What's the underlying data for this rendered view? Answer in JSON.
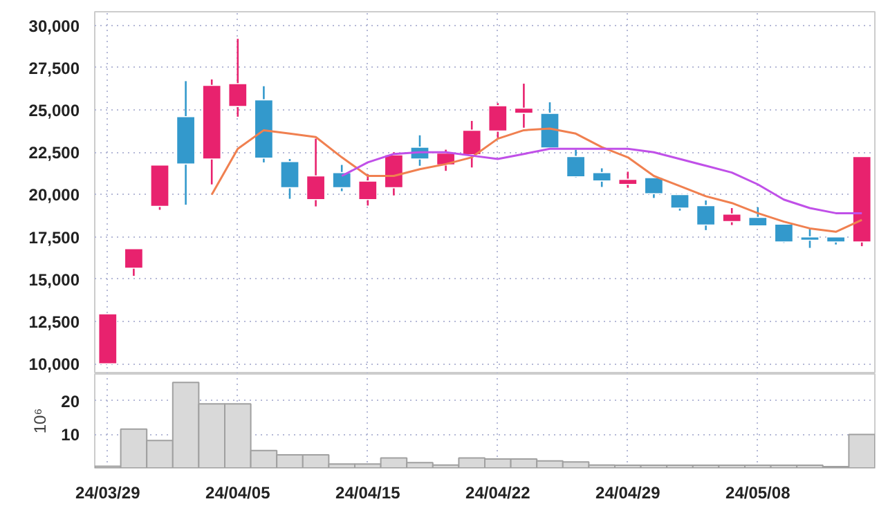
{
  "chart_data": [
    {
      "type": "candlestick",
      "categories": [
        "24/03/29",
        null,
        null,
        null,
        null,
        "24/04/05",
        null,
        null,
        null,
        null,
        "24/04/15",
        null,
        null,
        null,
        null,
        "24/04/22",
        null,
        null,
        null,
        null,
        "24/04/29",
        null,
        null,
        null,
        null,
        "24/05/08",
        null,
        null,
        null,
        null
      ],
      "ohlc": [
        [
          10000,
          12950,
          10000,
          12950
        ],
        [
          15650,
          16800,
          15200,
          16800
        ],
        [
          19300,
          21750,
          19100,
          21750
        ],
        [
          24600,
          26700,
          19400,
          21800
        ],
        [
          22100,
          26800,
          20600,
          26450
        ],
        [
          25200,
          29200,
          24600,
          26550
        ],
        [
          25600,
          26400,
          21900,
          22150
        ],
        [
          21950,
          22100,
          19750,
          20400
        ],
        [
          19700,
          23300,
          19300,
          21100
        ],
        [
          21300,
          21750,
          20200,
          20400
        ],
        [
          19700,
          21200,
          19350,
          20800
        ],
        [
          20400,
          22500,
          19950,
          22350
        ],
        [
          22800,
          23500,
          21700,
          22100
        ],
        [
          21750,
          22650,
          21400,
          22450
        ],
        [
          22350,
          24350,
          21600,
          23800
        ],
        [
          23750,
          25400,
          23350,
          25250
        ],
        [
          24800,
          26550,
          23950,
          25100
        ],
        [
          24800,
          25450,
          22750,
          22750
        ],
        [
          22250,
          22650,
          21000,
          21050
        ],
        [
          21300,
          21550,
          20450,
          20800
        ],
        [
          20600,
          21350,
          20400,
          20900
        ],
        [
          21000,
          21000,
          19800,
          20050
        ],
        [
          20000,
          20000,
          19050,
          19200
        ],
        [
          19350,
          19650,
          17900,
          18200
        ],
        [
          18400,
          19200,
          18200,
          18850
        ],
        [
          18650,
          19250,
          18150,
          18150
        ],
        [
          18250,
          18250,
          17150,
          17200
        ],
        [
          17500,
          18000,
          16850,
          17300
        ],
        [
          17500,
          17500,
          17050,
          17200
        ],
        [
          17200,
          22250,
          16950,
          22250
        ]
      ],
      "colors": [
        "#e8226e",
        "#e8226e",
        "#e8226e",
        "#3399cc",
        "#e8226e",
        "#e8226e",
        "#3399cc",
        "#3399cc",
        "#e8226e",
        "#3399cc",
        "#e8226e",
        "#e8226e",
        "#3399cc",
        "#e8226e",
        "#e8226e",
        "#e8226e",
        "#e8226e",
        "#3399cc",
        "#3399cc",
        "#3399cc",
        "#e8226e",
        "#3399cc",
        "#3399cc",
        "#3399cc",
        "#e8226e",
        "#3399cc",
        "#3399cc",
        "#3399cc",
        "#3399cc",
        "#e8226e"
      ],
      "series": [
        {
          "type": "line",
          "color": "#f08050",
          "values": [
            null,
            null,
            null,
            null,
            20000,
            22700,
            23800,
            23600,
            23400,
            22200,
            21100,
            21100,
            21500,
            21800,
            22200,
            23300,
            23800,
            23900,
            23600,
            22800,
            22200,
            21100,
            20500,
            19900,
            19500,
            18900,
            18400,
            18000,
            17800,
            18500
          ]
        },
        {
          "type": "line",
          "color": "#c050e8",
          "values": [
            null,
            null,
            null,
            null,
            null,
            null,
            null,
            null,
            null,
            21100,
            21900,
            22400,
            22500,
            22500,
            22300,
            22100,
            22400,
            22700,
            22700,
            22700,
            22700,
            22500,
            22100,
            21700,
            21300,
            20600,
            19700,
            19200,
            18900,
            18900
          ]
        }
      ],
      "ylim": [
        9400,
        30800
      ],
      "yticks": [
        {
          "value": 10000,
          "label": "10,000"
        },
        {
          "value": 12500,
          "label": "12,500"
        },
        {
          "value": 15000,
          "label": "15,000"
        },
        {
          "value": 17500,
          "label": "17,500"
        },
        {
          "value": 20000,
          "label": "20,000"
        },
        {
          "value": 22500,
          "label": "22,500"
        },
        {
          "value": 25000,
          "label": "25,000"
        },
        {
          "value": 27500,
          "label": "27,500"
        },
        {
          "value": 30000,
          "label": "30,000"
        }
      ],
      "grid": true,
      "tick_labels": "y"
    },
    {
      "type": "bar",
      "categories": [
        "24/03/29",
        null,
        null,
        null,
        null,
        "24/04/05",
        null,
        null,
        null,
        null,
        "24/04/15",
        null,
        null,
        null,
        null,
        "24/04/22",
        null,
        null,
        null,
        null,
        "24/04/29",
        null,
        null,
        null,
        null,
        "24/05/08",
        null,
        null,
        null,
        null
      ],
      "values": [
        0.5,
        11.6,
        8.2,
        25.5,
        19.1,
        19.1,
        5.2,
        3.9,
        3.9,
        1.2,
        1.2,
        3.0,
        1.6,
        0.9,
        3.0,
        2.7,
        2.7,
        2.1,
        1.8,
        0.9,
        0.8,
        0.8,
        0.8,
        0.8,
        0.8,
        0.8,
        0.8,
        0.8,
        0.4,
        10.0
      ],
      "color": "#d9d9d9",
      "ylabel": "10⁶",
      "ylim": [
        0,
        28
      ],
      "yticks": [
        10,
        20
      ],
      "grid": true
    }
  ]
}
